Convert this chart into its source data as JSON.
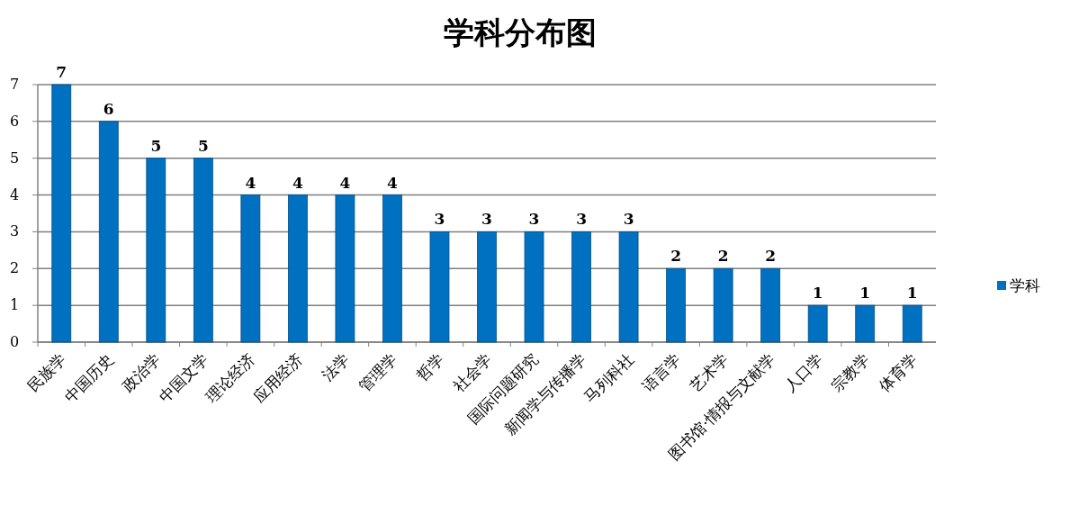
{
  "chart_data": {
    "type": "bar",
    "title": "学科分布图",
    "categories": [
      "民族学",
      "中国历史",
      "政治学",
      "中国文学",
      "理论经济",
      "应用经济",
      "法学",
      "管理学",
      "哲学",
      "社会学",
      "国际问题研究",
      "新闻学与传播学",
      "马列科社",
      "语言学",
      "艺术学",
      "图书馆·情报与文献学",
      "人口学",
      "宗教学",
      "体育学"
    ],
    "series": [
      {
        "name": "学科",
        "color": "#0070c0",
        "values": [
          7,
          6,
          5,
          5,
          4,
          4,
          4,
          4,
          3,
          3,
          3,
          3,
          3,
          2,
          2,
          2,
          1,
          1,
          1
        ]
      }
    ],
    "ylim": [
      0,
      7
    ],
    "yticks": [
      0,
      1,
      2,
      3,
      4,
      5,
      6,
      7
    ],
    "grid": "y",
    "legend": "right",
    "data_labels": true
  }
}
